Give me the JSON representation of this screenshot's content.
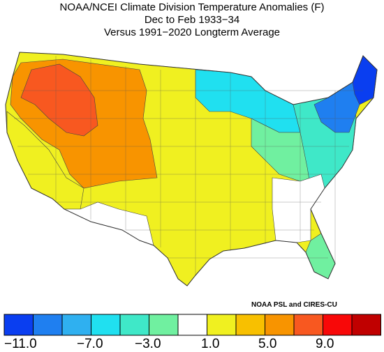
{
  "title": {
    "line1": "NOAA/NCEI Climate Division Temperature Anomalies (F)",
    "line2": "Dec to Feb 1933−34",
    "line3": "Versus 1991−2020 Longterm Average"
  },
  "credit": "NOAA PSL and CIRES-CU",
  "legend": {
    "colors": [
      "#0a3ef0",
      "#1f7ff0",
      "#2fb0f0",
      "#20e0f0",
      "#3fe8c8",
      "#70f0a0",
      "#ffffff",
      "#f0f020",
      "#f8c000",
      "#f89400",
      "#f85820",
      "#f80808",
      "#c00000"
    ],
    "tick_labels": [
      "−11.0",
      "−7.0",
      "−3.0",
      "1.0",
      "5.0",
      "9.0"
    ]
  },
  "map_regions": [
    {
      "name": "northeast",
      "color": "#1f7ff0"
    },
    {
      "name": "maine",
      "color": "#0a3ef0"
    },
    {
      "name": "great-lakes",
      "color": "#20e0f0"
    },
    {
      "name": "ohio-valley",
      "color": "#70f0a0"
    },
    {
      "name": "mid-atlantic",
      "color": "#3fe8c8"
    },
    {
      "name": "northwest-core",
      "color": "#f85820"
    },
    {
      "name": "interior-west",
      "color": "#f89400"
    },
    {
      "name": "plains",
      "color": "#f0f020"
    },
    {
      "name": "southeast-neutral",
      "color": "#ffffff"
    },
    {
      "name": "florida",
      "color": "#70f0a0"
    }
  ]
}
